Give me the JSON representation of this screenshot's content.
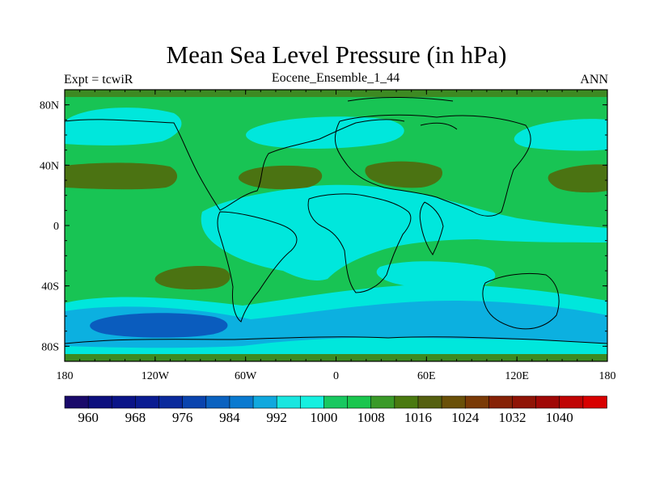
{
  "title": "Mean Sea Level Pressure (in hPa)",
  "left_label": "Expt = tcwiR",
  "center_label": "Eocene_Ensemble_1_44",
  "right_label": "ANN",
  "map": {
    "projection": "cylindrical equidistant",
    "lon_range": [
      -180,
      180
    ],
    "lat_range": [
      -90,
      90
    ],
    "x_ticks": [
      {
        "lon": -180,
        "label": "180"
      },
      {
        "lon": -120,
        "label": "120W"
      },
      {
        "lon": -60,
        "label": "60W"
      },
      {
        "lon": 0,
        "label": "0"
      },
      {
        "lon": 60,
        "label": "60E"
      },
      {
        "lon": 120,
        "label": "120E"
      },
      {
        "lon": 180,
        "label": "180"
      }
    ],
    "y_ticks": [
      {
        "lat": 80,
        "label": "80N"
      },
      {
        "lat": 40,
        "label": "40N"
      },
      {
        "lat": 0,
        "label": "0"
      },
      {
        "lat": -40,
        "label": "40S"
      },
      {
        "lat": -80,
        "label": "80S"
      }
    ]
  },
  "colorbar": {
    "colors": [
      "#1a0a6b",
      "#0c0f7e",
      "#0a1488",
      "#0a1c92",
      "#0a2a9c",
      "#0a44ae",
      "#0a62c0",
      "#0a7ad0",
      "#10a8de",
      "#1ae6e0",
      "#16f0e0",
      "#18c860",
      "#1ac64e",
      "#3a9a28",
      "#4a7a10",
      "#556010",
      "#6a5008",
      "#7a3a06",
      "#862206",
      "#901406",
      "#a00806",
      "#c00404",
      "#d80000"
    ],
    "labels": [
      "960",
      "968",
      "976",
      "984",
      "992",
      "1000",
      "1008",
      "1016",
      "1024",
      "1032",
      "1040"
    ]
  },
  "field_palette": {
    "ocean_green": "#18c454",
    "high_olive": "#4b7312",
    "cyan": "#00e7dc",
    "light_blue": "#0cb0e0",
    "deep_blue": "#0a5cbe",
    "polar_dark": "#3d8a22"
  }
}
